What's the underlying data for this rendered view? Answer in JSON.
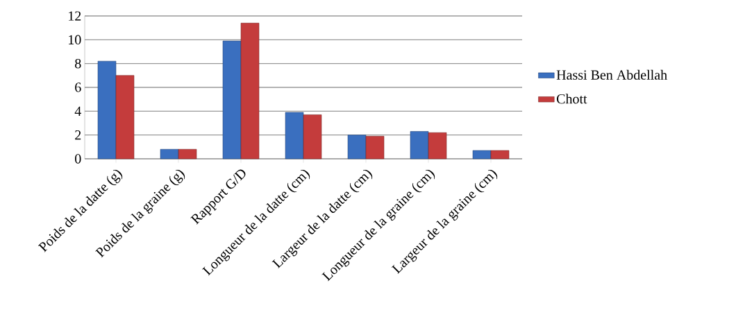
{
  "chart_data": {
    "type": "bar",
    "categories": [
      "Poids de la datte (g)",
      "Poids de la graine (g)",
      "Rapport G/D",
      "Longueur de la datte (cm)",
      "Largeur de la datte (cm)",
      "Longueur de la graine (cm)",
      "Largeur de la graine (cm)"
    ],
    "series": [
      {
        "name": "Hassi Ben Abdellah",
        "color": "#3a6fbf",
        "values": [
          8.2,
          0.8,
          9.9,
          3.9,
          2.0,
          2.3,
          0.7
        ]
      },
      {
        "name": "Chott",
        "color": "#c43c3c",
        "values": [
          7.0,
          0.8,
          11.4,
          3.7,
          1.9,
          2.2,
          0.7
        ]
      }
    ],
    "ylim": [
      0,
      12
    ],
    "yticks": [
      0,
      2,
      4,
      6,
      8,
      10,
      12
    ],
    "grid": "y",
    "legend": "right"
  }
}
